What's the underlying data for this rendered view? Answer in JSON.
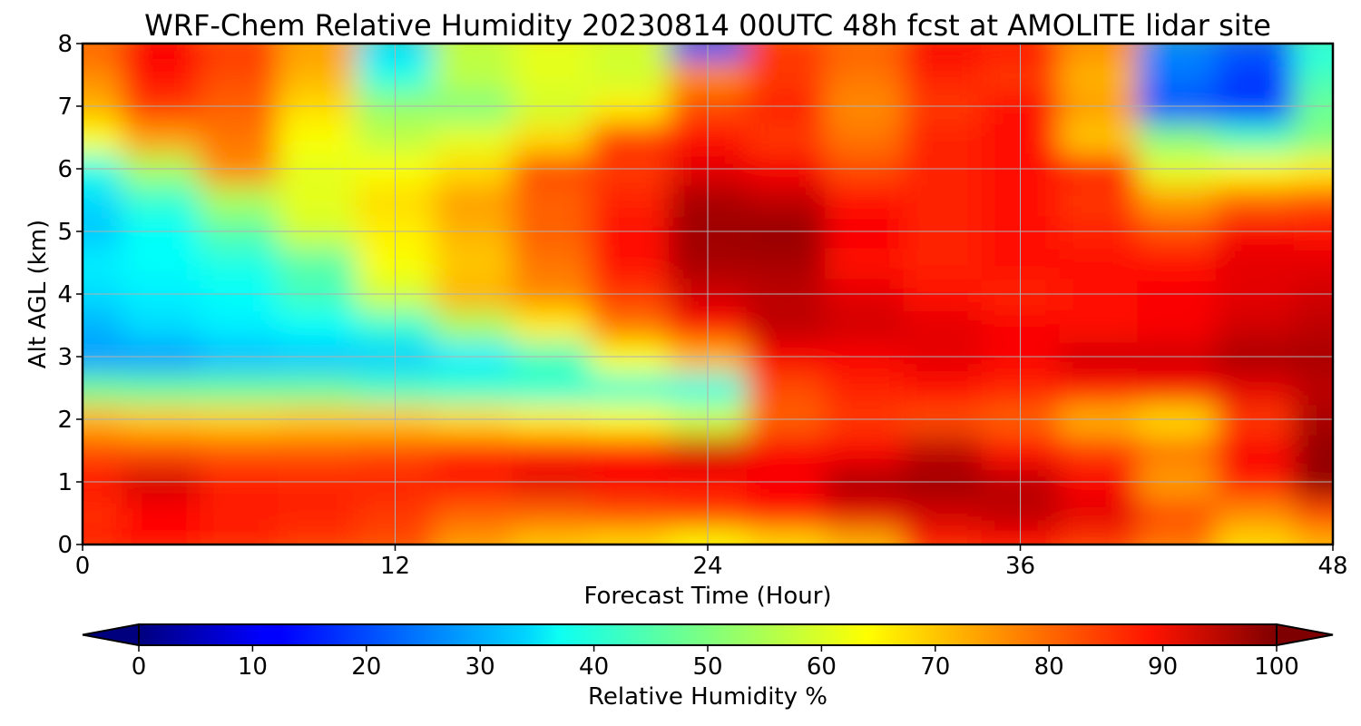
{
  "chart_data": {
    "type": "heatmap",
    "title": "WRF-Chem Relative Humidity 20230814 00UTC 48h fcst at AMOLITE lidar site",
    "xlabel": "Forecast Time (Hour)",
    "ylabel": "Alt AGL (km)",
    "xlim": [
      0,
      48
    ],
    "ylim": [
      0,
      8
    ],
    "xticks": [
      0,
      12,
      24,
      36,
      48
    ],
    "yticks": [
      0,
      1,
      2,
      3,
      4,
      5,
      6,
      7,
      8
    ],
    "grid": true,
    "colormap": "jet",
    "colorbar": {
      "label": "Relative Humidity %",
      "min": 0,
      "max": 100,
      "ticks": [
        0,
        10,
        20,
        30,
        40,
        50,
        60,
        70,
        80,
        90,
        100
      ],
      "extend": "both",
      "orientation": "horizontal"
    },
    "hours": [
      0,
      3,
      6,
      9,
      12,
      15,
      18,
      21,
      24,
      27,
      30,
      33,
      36,
      39,
      42,
      45,
      48
    ],
    "altitudes_km": [
      0,
      0.5,
      1,
      1.5,
      2,
      2.5,
      3,
      3.5,
      4,
      4.5,
      5,
      5.5,
      6,
      6.5,
      7,
      7.5,
      8
    ],
    "values": [
      [
        85,
        86,
        84,
        82,
        80,
        72,
        68,
        66,
        62,
        66,
        70,
        84,
        86,
        82,
        76,
        66,
        70
      ],
      [
        83,
        87,
        85,
        84,
        82,
        78,
        78,
        80,
        82,
        86,
        90,
        92,
        94,
        90,
        80,
        74,
        80
      ],
      [
        86,
        92,
        85,
        84,
        84,
        86,
        90,
        88,
        86,
        88,
        96,
        97,
        94,
        88,
        72,
        85,
        98
      ],
      [
        80,
        80,
        79,
        79,
        80,
        83,
        84,
        86,
        92,
        88,
        88,
        94,
        86,
        82,
        76,
        88,
        98
      ],
      [
        70,
        68,
        67,
        68,
        68,
        66,
        64,
        62,
        58,
        78,
        82,
        80,
        78,
        70,
        66,
        82,
        96
      ],
      [
        48,
        47,
        47,
        47,
        44,
        43,
        42,
        42,
        40,
        80,
        84,
        86,
        84,
        86,
        88,
        90,
        94
      ],
      [
        28,
        28,
        31,
        32,
        33,
        36,
        44,
        62,
        70,
        88,
        88,
        90,
        88,
        92,
        92,
        96,
        96
      ],
      [
        30,
        34,
        36,
        38,
        42,
        54,
        64,
        76,
        86,
        94,
        92,
        90,
        88,
        86,
        88,
        92,
        94
      ],
      [
        34,
        36,
        38,
        44,
        58,
        70,
        74,
        82,
        92,
        94,
        90,
        86,
        84,
        86,
        88,
        90,
        92
      ],
      [
        36,
        38,
        40,
        46,
        62,
        68,
        76,
        86,
        96,
        96,
        86,
        84,
        86,
        86,
        86,
        90,
        90
      ],
      [
        32,
        38,
        46,
        58,
        64,
        70,
        78,
        86,
        97,
        98,
        88,
        84,
        86,
        84,
        80,
        88,
        86
      ],
      [
        34,
        42,
        54,
        60,
        66,
        72,
        78,
        84,
        96,
        94,
        86,
        84,
        86,
        82,
        72,
        78,
        80
      ],
      [
        40,
        54,
        74,
        60,
        62,
        66,
        80,
        82,
        90,
        88,
        80,
        84,
        86,
        84,
        60,
        62,
        64
      ],
      [
        62,
        72,
        76,
        62,
        56,
        60,
        66,
        82,
        86,
        82,
        76,
        84,
        86,
        68,
        50,
        44,
        50
      ],
      [
        70,
        82,
        78,
        66,
        52,
        50,
        58,
        64,
        80,
        84,
        74,
        82,
        86,
        72,
        20,
        18,
        48
      ],
      [
        74,
        86,
        80,
        70,
        40,
        56,
        60,
        58,
        74,
        82,
        76,
        84,
        82,
        70,
        24,
        18,
        44
      ],
      [
        78,
        88,
        82,
        72,
        34,
        56,
        60,
        58,
        20,
        82,
        78,
        88,
        86,
        74,
        26,
        22,
        40
      ]
    ]
  }
}
